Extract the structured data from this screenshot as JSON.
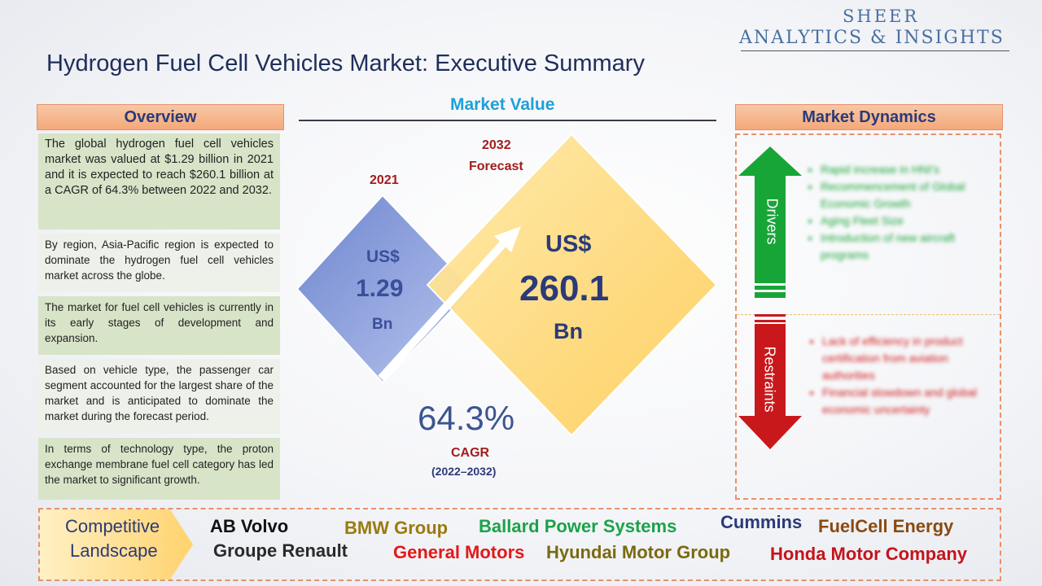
{
  "logo": {
    "line1": "SHEER",
    "line2": "ANALYTICS & INSIGHTS"
  },
  "title": "Hydrogen Fuel Cell Vehicles Market: Executive Summary",
  "overview": {
    "header": "Overview",
    "paragraphs": [
      "The global hydrogen fuel cell vehicles market was valued at $1.29 billion in 2021 and it is expected to reach $260.1 billion at a CAGR of 64.3% between 2022 and 2032.",
      "By region, Asia-Pacific region is expected to dominate the hydrogen fuel cell vehicles market across the globe.",
      "The market for fuel cell vehicles is currently in its early stages of development and expansion.",
      "Based on vehicle type, the passenger car segment accounted for the largest share of the market and is anticipated to dominate the market during the forecast period.",
      "In terms of technology type, the proton exchange membrane fuel cell category has led the market to significant growth."
    ]
  },
  "market_value": {
    "header": "Market Value",
    "y2021": {
      "year": "2021",
      "currency": "US$",
      "value": "1.29",
      "unit": "Bn"
    },
    "y2032": {
      "year": "2032",
      "forecast": "Forecast",
      "currency": "US$",
      "value": "260.1",
      "unit": "Bn"
    },
    "cagr": {
      "value": "64.3%",
      "label": "CAGR",
      "period": "(2022–2032)"
    }
  },
  "dynamics": {
    "header": "Market Dynamics",
    "drivers_label": "Drivers",
    "restraints_label": "Restraints",
    "drivers": [
      "Rapid increase in HNI's",
      "Recommencement of Global Economic Growth",
      "Aging Fleet Size",
      "Introduction of new aircraft programs"
    ],
    "restraints": [
      "Lack of efficiency in product certification from aviation authorities",
      "Financial slowdown and global economic uncertainty"
    ]
  },
  "competitive": {
    "label_line1": "Competitive",
    "label_line2": "Landscape",
    "companies": [
      "AB Volvo",
      "BMW Group",
      "Ballard Power Systems",
      "Cummins",
      "FuelCell Energy",
      "Groupe Renault",
      "General Motors",
      "Hyundai Motor Group",
      "Honda Motor Company"
    ]
  },
  "colors": {
    "navy": "#1f2e5a",
    "orange": "#f4a87a",
    "green_box": "#d8e4c8",
    "blue_diamond": "#7f95d6",
    "yellow_diamond": "#ffd77a",
    "driver_green": "#18a538",
    "restraint_red": "#c9181b",
    "company_colors": [
      "#111111",
      "#9a7a10",
      "#1aa349",
      "#2b3a78",
      "#8a4a10",
      "#2a2a2a",
      "#e01a1a",
      "#7a6a10",
      "#c4141c"
    ]
  }
}
